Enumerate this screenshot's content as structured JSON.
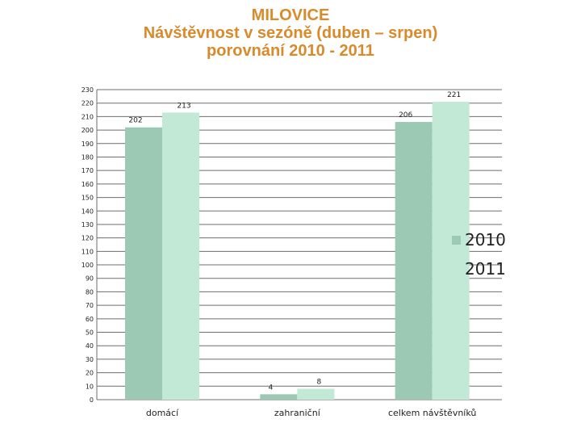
{
  "title_lines": [
    "MILOVICE",
    "Návštěvnost v sezóně (duben – srpen)",
    "porovnání 2010 - 2011"
  ],
  "colors": {
    "title": "#d98a2b",
    "series_2010": "#9cc9b4",
    "series_2011": "#c2e8d6",
    "grid": "#6e6e6e"
  },
  "chart_data": {
    "type": "bar",
    "categories": [
      "domácí",
      "zahraniční",
      "celkem návštěvníků"
    ],
    "series": [
      {
        "name": "2010",
        "values": [
          202,
          4,
          206
        ]
      },
      {
        "name": "2011",
        "values": [
          213,
          8,
          221
        ]
      }
    ],
    "ylim": [
      0,
      230
    ],
    "ytick_step": 10,
    "grid": true,
    "legend_position": "right"
  }
}
